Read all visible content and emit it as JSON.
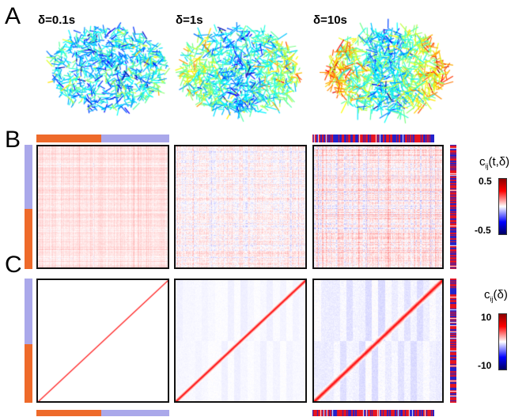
{
  "panels": {
    "A": "A",
    "B": "B",
    "C": "C"
  },
  "deltas": [
    "δ=0.1s",
    "δ=1s",
    "δ=10s"
  ],
  "colorbar_B": {
    "title_main": "c",
    "title_sub": "ij",
    "title_rest": "(t,δ)",
    "max": "0.5",
    "min": "-0.5"
  },
  "colorbar_C": {
    "title_main": "c",
    "title_sub": "ij",
    "title_rest": "(δ)",
    "max": "10",
    "min": "-10"
  },
  "colors": {
    "orange": "#ee6a2a",
    "lavender": "#aaa8ea",
    "red": "#e8141e",
    "blue": "#2222cc"
  }
}
